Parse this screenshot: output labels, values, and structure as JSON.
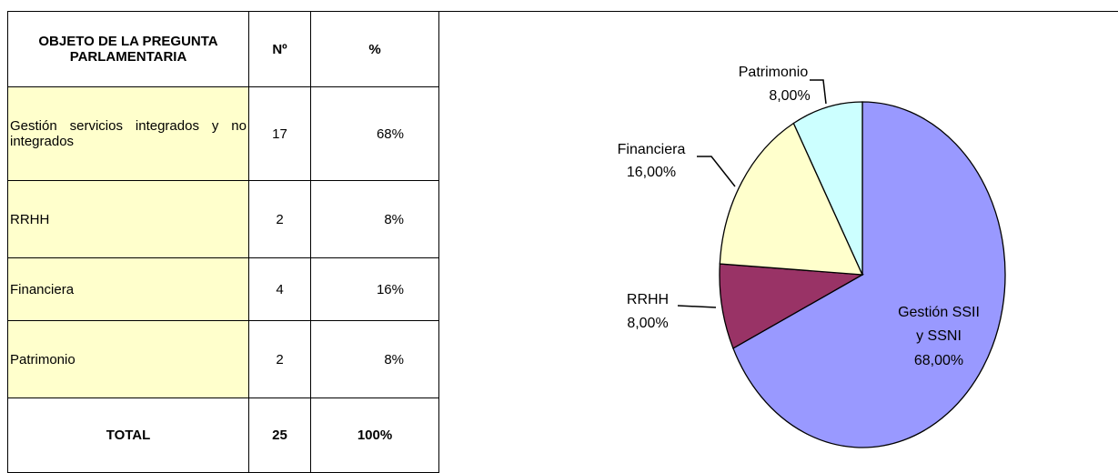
{
  "table": {
    "header": [
      "OBJETO DE LA PREGUNTA PARLAMENTARIA",
      "Nº",
      "%"
    ],
    "rows": [
      [
        "Gestión servicios integrados y no integrados",
        "17",
        "68%"
      ],
      [
        "RRHH",
        "2",
        "8%"
      ],
      [
        "Financiera",
        "4",
        "16%"
      ],
      [
        "Patrimonio",
        "2",
        "8%"
      ]
    ],
    "total": [
      "TOTAL",
      "25",
      "100%"
    ]
  },
  "chart_data": {
    "type": "pie",
    "categories": [
      "Gestión SSII y SSNI",
      "RRHH",
      "Financiera",
      "Patrimonio"
    ],
    "values": [
      68,
      8,
      16,
      8
    ],
    "value_labels": [
      "68,00%",
      "8,00%",
      "16,00%",
      "8,00%"
    ],
    "colors": [
      "#9999ff",
      "#993366",
      "#ffffcc",
      "#ccffff"
    ]
  }
}
